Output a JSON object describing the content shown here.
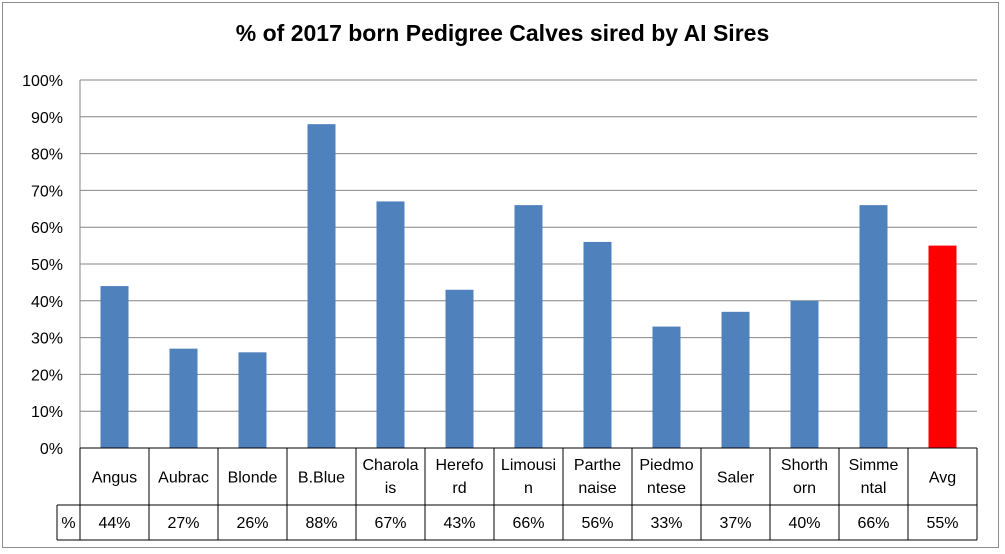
{
  "chart_data": {
    "type": "bar",
    "title": "% of 2017 born Pedigree Calves sired by AI Sires",
    "categories": [
      "Angus",
      "Aubrac",
      "Blonde",
      "B.Blue",
      "Charolais",
      "Hereford",
      "Limousin",
      "Parthenaise",
      "Piedmontese",
      "Saler",
      "Shorthorn",
      "Simmental",
      "Avg"
    ],
    "category_lines": [
      [
        "Angus"
      ],
      [
        "Aubrac"
      ],
      [
        "Blonde"
      ],
      [
        "B.Blue"
      ],
      [
        "Charola",
        "is"
      ],
      [
        "Herefo",
        "rd"
      ],
      [
        "Limousi",
        "n"
      ],
      [
        "Parthe",
        "naise"
      ],
      [
        "Piedmo",
        "ntese"
      ],
      [
        "Saler"
      ],
      [
        "Shorth",
        "orn"
      ],
      [
        "Simme",
        "ntal"
      ],
      [
        "Avg"
      ]
    ],
    "series": [
      {
        "values": [
          44,
          27,
          26,
          88,
          67,
          43,
          66,
          56,
          33,
          37,
          40,
          66,
          55
        ]
      }
    ],
    "value_labels": [
      "44%",
      "27%",
      "26%",
      "88%",
      "67%",
      "43%",
      "66%",
      "56%",
      "33%",
      "37%",
      "40%",
      "66%",
      "55%"
    ],
    "table_row_header": "%",
    "ylim": [
      0,
      100
    ],
    "yticks": [
      0,
      10,
      20,
      30,
      40,
      50,
      60,
      70,
      80,
      90,
      100
    ],
    "ytick_labels": [
      "0%",
      "10%",
      "20%",
      "30%",
      "40%",
      "50%",
      "60%",
      "70%",
      "80%",
      "90%",
      "100%"
    ],
    "grid": true,
    "legend": "none",
    "bar_color": "#4f81bd",
    "highlight_bar": "Avg",
    "highlight_color": "#ff0000",
    "grid_color": "#868686"
  }
}
